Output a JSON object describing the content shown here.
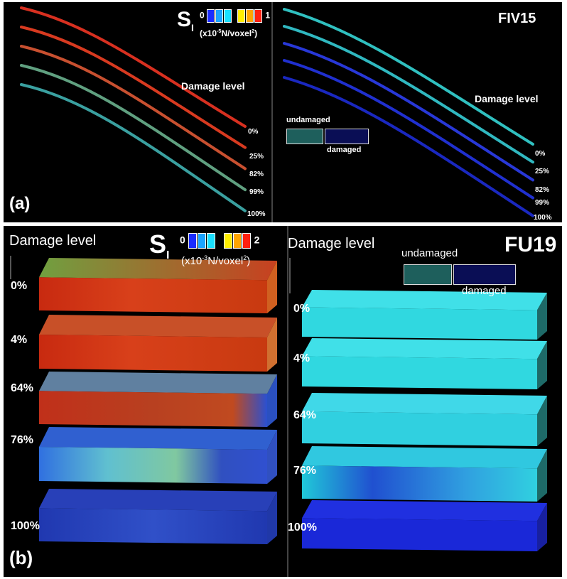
{
  "panel_a": {
    "label": "(a)",
    "specimen": "FIV15",
    "colorbar": {
      "symbol": "S",
      "subscript": "I",
      "min": "0",
      "max": "1",
      "unit_prefix": "(x10",
      "unit_exp": "-5",
      "unit_mid": "N/voxel",
      "unit_exp2": "2",
      "unit_suffix": ")",
      "colors": [
        "#1a2cff",
        "#1aa4ff",
        "#19e0ff",
        "#ffee00",
        "#ffa500",
        "#ff2010"
      ]
    },
    "left_title": "Damage level",
    "left_levels": [
      "0%",
      "25%",
      "82%",
      "99%",
      "100%"
    ],
    "right_title": "Damage level",
    "right_levels": [
      "0%",
      "25%",
      "82%",
      "99%",
      "100%"
    ],
    "legend": {
      "undamaged": "undamaged",
      "damaged": "damaged",
      "undamaged_color": "#1e5f5c",
      "damaged_color": "#0a0e55"
    }
  },
  "panel_b": {
    "label": "(b)",
    "specimen": "FU19",
    "colorbar": {
      "symbol": "S",
      "subscript": "I",
      "min": "0",
      "max": "2",
      "unit_prefix": "(x10",
      "unit_exp": "-3",
      "unit_mid": "N/voxel",
      "unit_exp2": "2",
      "unit_suffix": ")"
    },
    "left_title": "Damage level",
    "left_levels": [
      "0%",
      "4%",
      "64%",
      "76%",
      "100%"
    ],
    "right_title": "Damage level",
    "right_levels": [
      "0%",
      "4%",
      "64%",
      "76%",
      "100%"
    ],
    "legend": {
      "undamaged": "undamaged",
      "damaged": "damaged"
    }
  }
}
